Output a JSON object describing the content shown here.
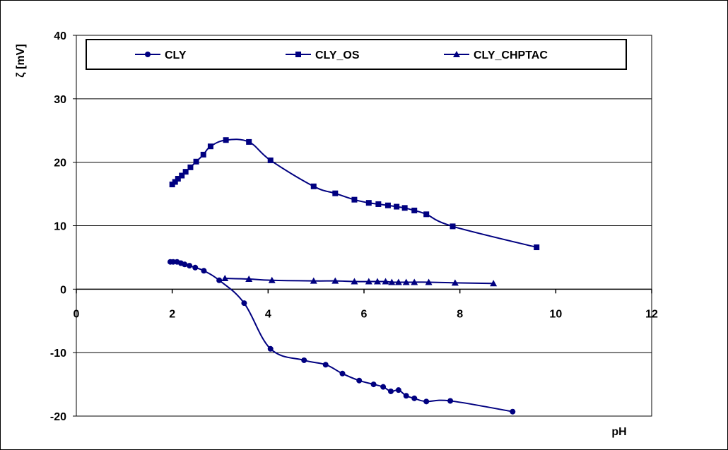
{
  "chart_data": {
    "type": "line",
    "title": "",
    "xlabel": "pH",
    "ylabel": "ζ [mV]",
    "xlim": [
      0,
      12
    ],
    "ylim": [
      -20,
      40
    ],
    "x_ticks": [
      0,
      2,
      4,
      6,
      8,
      10,
      12
    ],
    "y_ticks": [
      -20,
      -10,
      0,
      10,
      20,
      30,
      40
    ],
    "grid": "horizontal",
    "legend_position": "top",
    "line_color": "#000080",
    "series": [
      {
        "name": "CLY",
        "marker": "circle",
        "points": [
          [
            1.96,
            4.3
          ],
          [
            2.02,
            4.3
          ],
          [
            2.1,
            4.3
          ],
          [
            2.18,
            4.1
          ],
          [
            2.26,
            3.9
          ],
          [
            2.36,
            3.7
          ],
          [
            2.48,
            3.4
          ],
          [
            2.66,
            2.9
          ],
          [
            2.98,
            1.4
          ],
          [
            3.5,
            -2.2
          ],
          [
            4.05,
            -9.4
          ],
          [
            4.75,
            -11.2
          ],
          [
            5.2,
            -11.9
          ],
          [
            5.55,
            -13.3
          ],
          [
            5.9,
            -14.4
          ],
          [
            6.2,
            -15.0
          ],
          [
            6.4,
            -15.4
          ],
          [
            6.56,
            -16.1
          ],
          [
            6.72,
            -15.9
          ],
          [
            6.88,
            -16.8
          ],
          [
            7.05,
            -17.2
          ],
          [
            7.3,
            -17.7
          ],
          [
            7.8,
            -17.6
          ],
          [
            9.1,
            -19.3
          ]
        ]
      },
      {
        "name": "CLY_OS",
        "marker": "square",
        "points": [
          [
            2.0,
            16.5
          ],
          [
            2.06,
            16.9
          ],
          [
            2.12,
            17.4
          ],
          [
            2.2,
            17.9
          ],
          [
            2.28,
            18.5
          ],
          [
            2.38,
            19.2
          ],
          [
            2.5,
            20.1
          ],
          [
            2.65,
            21.2
          ],
          [
            2.8,
            22.5
          ],
          [
            3.12,
            23.5
          ],
          [
            3.6,
            23.2
          ],
          [
            4.05,
            20.3
          ],
          [
            4.95,
            16.2
          ],
          [
            5.4,
            15.1
          ],
          [
            5.8,
            14.1
          ],
          [
            6.1,
            13.6
          ],
          [
            6.3,
            13.4
          ],
          [
            6.5,
            13.2
          ],
          [
            6.68,
            13.0
          ],
          [
            6.85,
            12.8
          ],
          [
            7.05,
            12.4
          ],
          [
            7.3,
            11.8
          ],
          [
            7.85,
            9.9
          ],
          [
            9.6,
            6.6
          ]
        ]
      },
      {
        "name": "CLY_CHPTAC",
        "marker": "triangle",
        "points": [
          [
            3.1,
            1.7
          ],
          [
            3.6,
            1.6
          ],
          [
            4.08,
            1.4
          ],
          [
            4.95,
            1.3
          ],
          [
            5.4,
            1.3
          ],
          [
            5.8,
            1.2
          ],
          [
            6.1,
            1.2
          ],
          [
            6.28,
            1.2
          ],
          [
            6.45,
            1.2
          ],
          [
            6.58,
            1.1
          ],
          [
            6.72,
            1.1
          ],
          [
            6.88,
            1.1
          ],
          [
            7.05,
            1.1
          ],
          [
            7.35,
            1.1
          ],
          [
            7.9,
            1.0
          ],
          [
            8.7,
            0.9
          ]
        ]
      }
    ]
  }
}
